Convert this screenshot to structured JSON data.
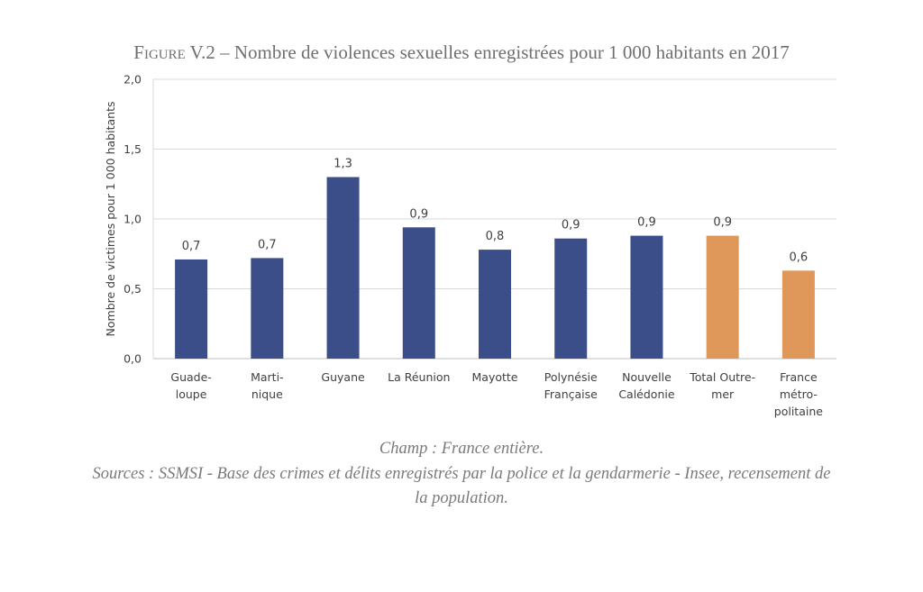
{
  "title": {
    "prefix": "Figure",
    "rest": " V.2 – Nombre de violences sexuelles enregistrées pour 1 000 habitants en 2017"
  },
  "chart_data": {
    "type": "bar",
    "title": "Figure V.2 – Nombre de violences sexuelles enregistrées pour 1 000 habitants en 2017",
    "xlabel": "",
    "ylabel": "Nombre de victimes pour 1 000 habitants",
    "ylim": [
      0,
      2.0
    ],
    "yticks": [
      "0,0",
      "0,5",
      "1,0",
      "1,5",
      "2,0"
    ],
    "grid": true,
    "categories": [
      [
        "Guade-",
        "loupe"
      ],
      [
        "Marti-",
        "nique"
      ],
      [
        "Guyane"
      ],
      [
        "La Réunion"
      ],
      [
        "Mayotte"
      ],
      [
        "Polynésie",
        "Française"
      ],
      [
        "Nouvelle",
        "Calédonie"
      ],
      [
        "Total Outre-",
        "mer"
      ],
      [
        "France",
        "métro-",
        "politaine"
      ]
    ],
    "values": [
      0.71,
      0.72,
      1.3,
      0.94,
      0.78,
      0.86,
      0.88,
      0.88,
      0.63
    ],
    "data_labels": [
      "0,7",
      "0,7",
      "1,3",
      "0,9",
      "0,8",
      "0,9",
      "0,9",
      "0,9",
      "0,6"
    ],
    "colors": [
      "#3c4e89",
      "#3c4e89",
      "#3c4e89",
      "#3c4e89",
      "#3c4e89",
      "#3c4e89",
      "#3c4e89",
      "#e0985a",
      "#e0985a"
    ]
  },
  "notes": {
    "champ": "Champ : France entière.",
    "sources_line1": "Sources : SSMSI - Base des crimes et délits enregistrés par la police et la gendarmerie - Insee, recensement de",
    "sources_line2": "la population."
  }
}
